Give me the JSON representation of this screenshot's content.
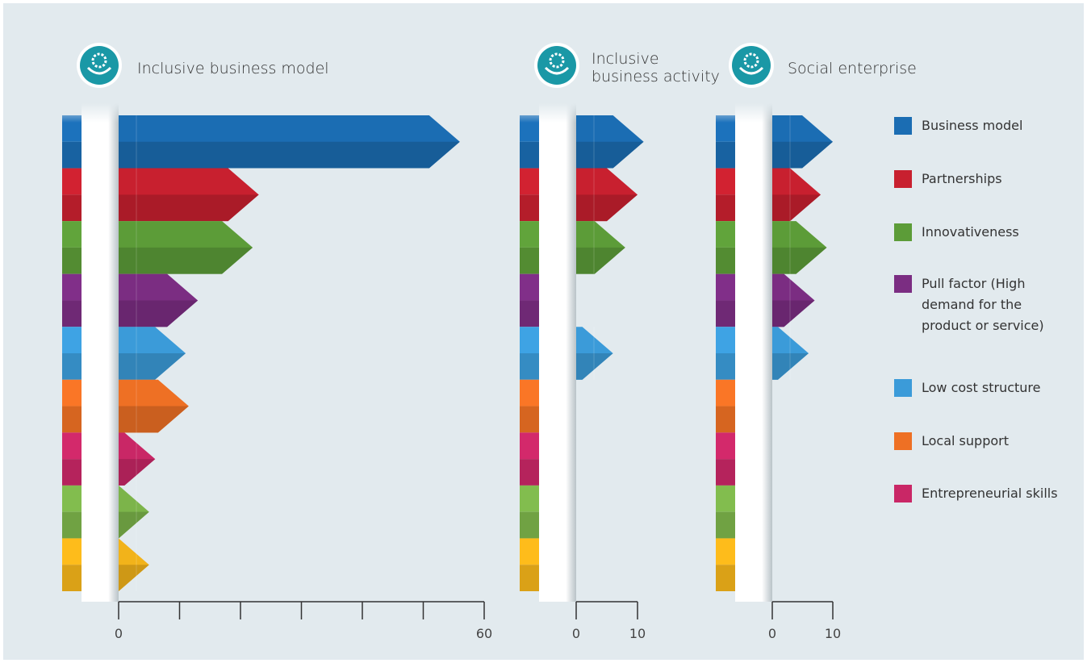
{
  "chart_data": {
    "type": "bar",
    "categories": [
      "Business model",
      "Partnerships",
      "Innovativeness",
      "Pull factor (High demand for the product or service)",
      "Low cost structure",
      "Local support",
      "Entrepreneurial skills",
      null,
      null
    ],
    "colors": [
      "#1b6db3",
      "#c8202f",
      "#5c9c38",
      "#7b2d82",
      "#3b9bd9",
      "#ee7024",
      "#c92766",
      "#7cb44a",
      "#f2b31a"
    ],
    "legend": "right",
    "panels": [
      {
        "title": "Inclusive business model",
        "values": [
          56,
          23,
          22,
          13,
          11,
          11.5,
          6,
          5,
          5
        ],
        "xlim": [
          0,
          60
        ],
        "xticks": [
          0,
          60
        ],
        "minor_xticks": [
          10,
          20,
          30,
          40,
          50
        ]
      },
      {
        "title": "Inclusive business activity",
        "values": [
          11,
          10,
          8,
          0,
          6,
          0,
          0,
          0,
          0
        ],
        "xlim": [
          0,
          10
        ],
        "xticks": [
          0,
          10
        ],
        "minor_xticks": []
      },
      {
        "title": "Social enterprise",
        "values": [
          10,
          8,
          9,
          7,
          6,
          0,
          0,
          0,
          0
        ],
        "xlim": [
          0,
          10
        ],
        "xticks": [
          0,
          10
        ],
        "minor_xticks": []
      }
    ]
  }
}
